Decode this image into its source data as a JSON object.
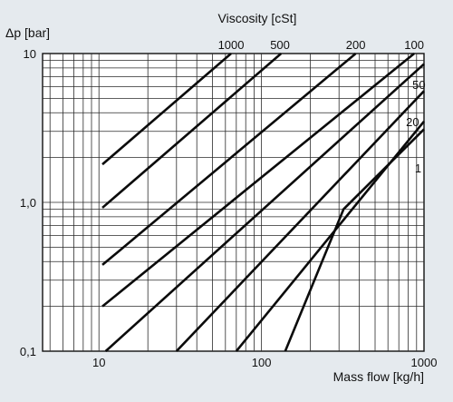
{
  "chart_data": {
    "type": "line",
    "x_scale": "log",
    "y_scale": "log",
    "xlim": [
      4.5,
      1000
    ],
    "ylim": [
      0.1,
      10
    ],
    "grid": true,
    "ylabel": "Δp [bar]",
    "xlabel": "Mass flow [kg/h]",
    "top_label": "Viscosity [cSt]",
    "x_ticks": [
      {
        "value": 10,
        "label": "10"
      },
      {
        "value": 100,
        "label": "100"
      },
      {
        "value": 1000,
        "label": "1000"
      }
    ],
    "y_ticks": [
      {
        "value": 0.1,
        "label": "0,1"
      },
      {
        "value": 1,
        "label": "1,0"
      },
      {
        "value": 10,
        "label": "10"
      }
    ],
    "curve_labels": [
      {
        "text": "1000",
        "x": 65,
        "y": 11.5
      },
      {
        "text": "500",
        "x": 130,
        "y": 11.5
      },
      {
        "text": "200",
        "x": 380,
        "y": 11.5
      },
      {
        "text": "100",
        "x": 870,
        "y": 11.5
      },
      {
        "text": "50",
        "x": 930,
        "y": 6.2
      },
      {
        "text": "20",
        "x": 850,
        "y": 3.5
      },
      {
        "text": "1",
        "x": 920,
        "y": 1.7
      }
    ],
    "series": [
      {
        "x": [
          10.5,
          65
        ],
        "y": [
          1.8,
          10
        ]
      },
      {
        "x": [
          10.5,
          132
        ],
        "y": [
          0.92,
          10
        ]
      },
      {
        "x": [
          10.5,
          380
        ],
        "y": [
          0.38,
          10
        ]
      },
      {
        "x": [
          10.5,
          870
        ],
        "y": [
          0.2,
          10
        ]
      },
      {
        "x": [
          11,
          1000
        ],
        "y": [
          0.1,
          8.5
        ]
      },
      {
        "x": [
          30,
          1000
        ],
        "y": [
          0.1,
          5.6
        ]
      },
      {
        "x": [
          70,
          1000
        ],
        "y": [
          0.1,
          3.5
        ]
      },
      {
        "x": [
          140,
          320,
          1000
        ],
        "y": [
          0.1,
          0.9,
          3.1
        ]
      }
    ]
  }
}
